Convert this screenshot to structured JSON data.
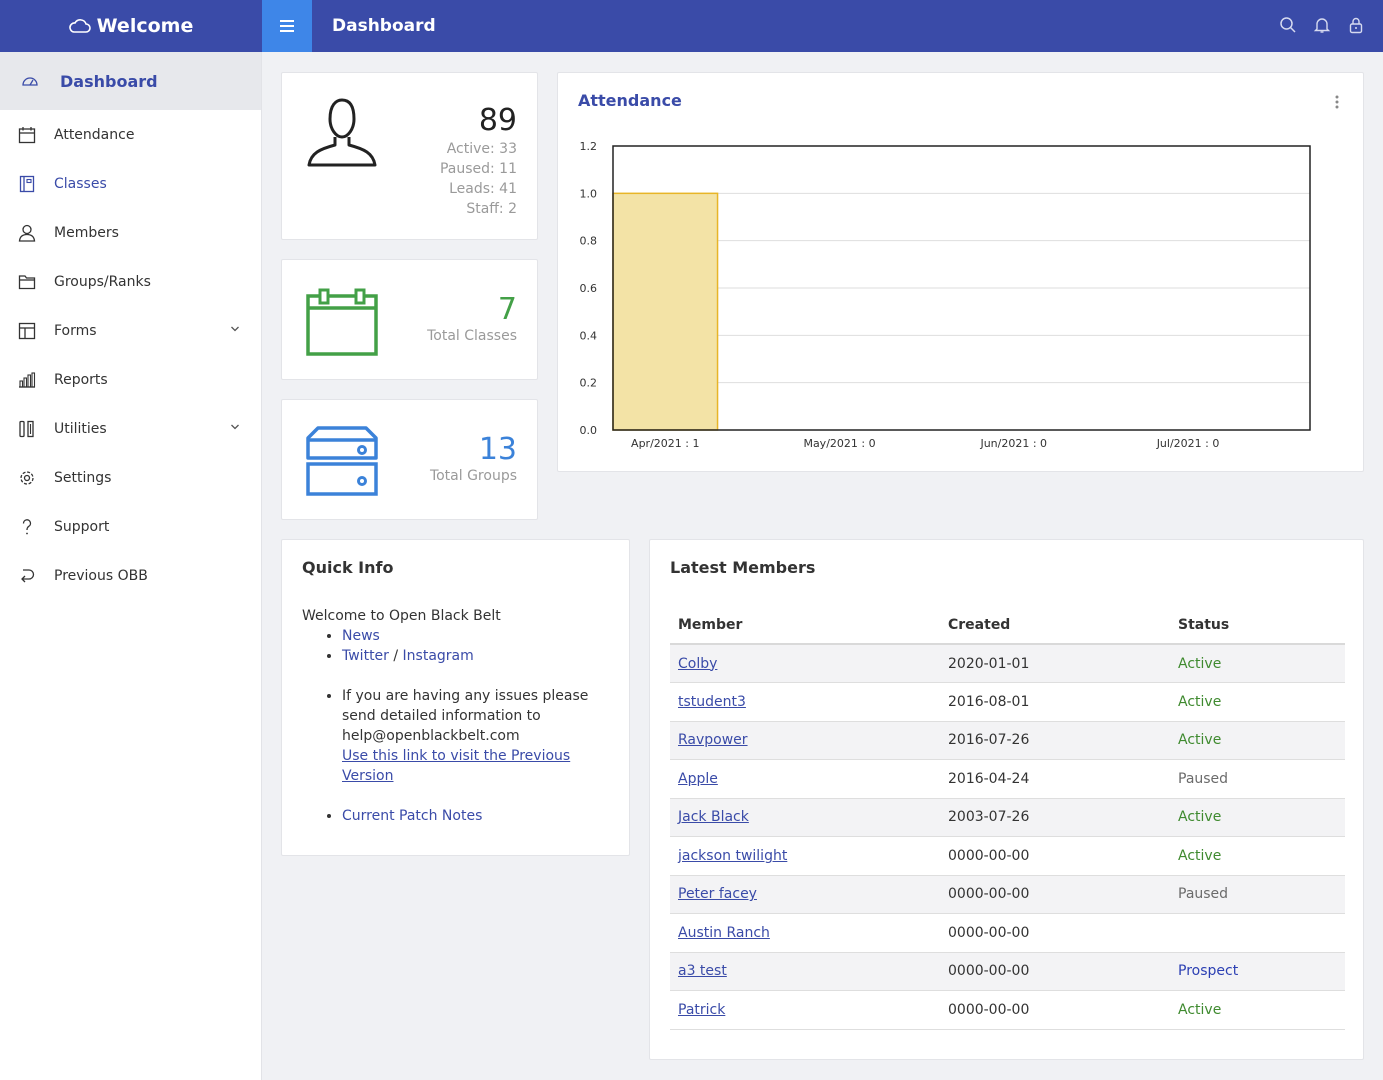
{
  "header": {
    "brand": "Welcome",
    "title": "Dashboard",
    "icons": [
      "search-icon",
      "bell-icon",
      "lock-icon"
    ]
  },
  "sidebar": {
    "items": [
      {
        "label": "Dashboard",
        "icon": "dashboard-icon"
      },
      {
        "label": "Attendance",
        "icon": "calendar-icon"
      },
      {
        "label": "Classes",
        "icon": "book-icon"
      },
      {
        "label": "Members",
        "icon": "user-icon"
      },
      {
        "label": "Groups/Ranks",
        "icon": "folder-icon"
      },
      {
        "label": "Forms",
        "icon": "layout-icon"
      },
      {
        "label": "Reports",
        "icon": "bar-chart-icon"
      },
      {
        "label": "Utilities",
        "icon": "tools-icon"
      },
      {
        "label": "Settings",
        "icon": "gear-icon"
      },
      {
        "label": "Support",
        "icon": "question-icon"
      },
      {
        "label": "Previous OBB",
        "icon": "return-icon"
      }
    ]
  },
  "stats": {
    "members": {
      "count": "89",
      "active": "Active: 33",
      "paused": "Paused: 11",
      "leads": "Leads: 41",
      "staff": "Staff: 2"
    },
    "classes": {
      "count": "7",
      "label": "Total Classes"
    },
    "groups": {
      "count": "13",
      "label": "Total Groups"
    }
  },
  "attendance": {
    "title": "Attendance",
    "chart_data": {
      "type": "bar",
      "categories": [
        "Apr/2021 : 1",
        "May/2021 : 0",
        "Jun/2021 : 0",
        "Jul/2021 : 0"
      ],
      "values": [
        1,
        0,
        0,
        0
      ],
      "ylim": [
        0,
        1.2
      ],
      "yticks": [
        "0.0",
        "0.2",
        "0.4",
        "0.6",
        "0.8",
        "1.0",
        "1.2"
      ],
      "grid": true,
      "colors": {
        "fill": "#f3e3a6",
        "stroke": "#e8b527"
      }
    }
  },
  "quick_info": {
    "title": "Quick Info",
    "welcome": "Welcome to Open Black Belt",
    "news": "News",
    "twitter": "Twitter",
    "sep": "/",
    "instagram": "Instagram",
    "issues": "If you are having any issues please send detailed information to help@openblackbelt.com",
    "prev_link": "Use this link to visit the Previous Version",
    "patch": "Current Patch Notes"
  },
  "latest_members": {
    "title": "Latest Members",
    "columns": [
      "Member",
      "Created",
      "Status"
    ],
    "rows": [
      {
        "name": "Colby",
        "created": "2020-01-01",
        "status": "Active"
      },
      {
        "name": "tstudent3",
        "created": "2016-08-01",
        "status": "Active"
      },
      {
        "name": "Ravpower",
        "created": "2016-07-26",
        "status": "Active"
      },
      {
        "name": "Apple",
        "created": "2016-04-24",
        "status": "Paused"
      },
      {
        "name": "Jack Black",
        "created": "2003-07-26",
        "status": "Active"
      },
      {
        "name": "jackson twilight",
        "created": "0000-00-00",
        "status": "Active"
      },
      {
        "name": "Peter facey",
        "created": "0000-00-00",
        "status": "Paused"
      },
      {
        "name": "Austin Ranch",
        "created": "0000-00-00",
        "status": ""
      },
      {
        "name": "a3 test",
        "created": "0000-00-00",
        "status": "Prospect"
      },
      {
        "name": "Patrick",
        "created": "0000-00-00",
        "status": "Active"
      }
    ]
  },
  "colors": {
    "primary": "#3a4ba8",
    "accent": "#3e86e8",
    "green": "#43a047",
    "blue": "#3b82d9"
  }
}
